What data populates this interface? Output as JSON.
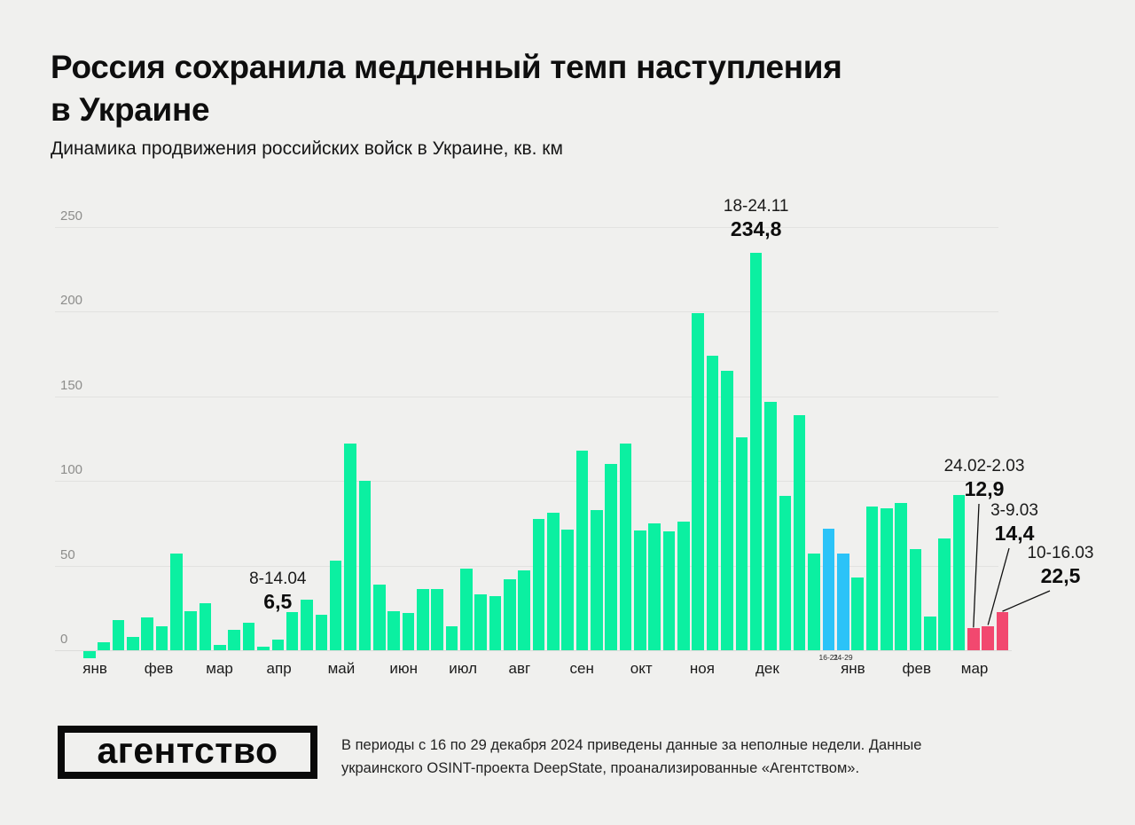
{
  "title": {
    "line1": "Россия сохранила медленный темп наступления",
    "line2": "в Украине"
  },
  "subtitle": "Динамика продвижения российских войск в Украине, кв. км",
  "footer": {
    "logo_text": "агентство",
    "note": "В периоды с 16 по 29 декабря 2024 приведены данные за неполные недели. Данные украинского OSINT-проекта DeepState, проанализированные «Агентством»."
  },
  "colors": {
    "background": "#f0f0ee",
    "bar_green": "#0bf0a1",
    "bar_blue": "#2bc3f8",
    "bar_pink": "#f2486f",
    "gridline": "#e2e2e0",
    "axis_text": "#8d8d8b",
    "ink": "#111111"
  },
  "chart_data": {
    "type": "bar",
    "title": "Россия сохранила медленный темп наступления в Украине",
    "ylabel": "кв. км",
    "ylim": [
      0,
      250
    ],
    "yticks": [
      0,
      50,
      100,
      150,
      200,
      250
    ],
    "grid": true,
    "x_unit": "недели (янв 2024 — мар 2025)",
    "values": [
      -4,
      5,
      18,
      8,
      19.5,
      14,
      57,
      23,
      28,
      3,
      12,
      16.5,
      2,
      6.5,
      22.5,
      30,
      21,
      53,
      122,
      100,
      39,
      23,
      22,
      36,
      36,
      14,
      48,
      33,
      32,
      42,
      47,
      77.5,
      81.5,
      71.5,
      118,
      83,
      110,
      122,
      71,
      75,
      70,
      76,
      199,
      174,
      165,
      126,
      234.8,
      147,
      91,
      139,
      57,
      72,
      57,
      43,
      85,
      84,
      87,
      60,
      20,
      66,
      92,
      12.9,
      14.4,
      22.5
    ],
    "blue_indices": [
      51,
      52
    ],
    "pink_indices": [
      61,
      62,
      63
    ],
    "months": [
      {
        "label": "янв",
        "idx": 0.3
      },
      {
        "label": "фев",
        "idx": 4.7
      },
      {
        "label": "мар",
        "idx": 8.9
      },
      {
        "label": "апр",
        "idx": 13.0
      },
      {
        "label": "май",
        "idx": 17.3
      },
      {
        "label": "июн",
        "idx": 21.6
      },
      {
        "label": "июл",
        "idx": 25.7
      },
      {
        "label": "авг",
        "idx": 29.6
      },
      {
        "label": "сен",
        "idx": 33.9
      },
      {
        "label": "окт",
        "idx": 38.0
      },
      {
        "label": "ноя",
        "idx": 42.2
      },
      {
        "label": "дек",
        "idx": 46.7
      },
      {
        "label": "янв",
        "idx": 52.6
      },
      {
        "label": "фев",
        "idx": 57.0
      },
      {
        "label": "мар",
        "idx": 61.0
      }
    ],
    "bar_sublabels": [
      {
        "index": 51,
        "text": "16-21"
      },
      {
        "index": 52,
        "text": "24-29"
      }
    ],
    "annotations": [
      {
        "kind": "above",
        "bar": 13,
        "date": "8-14.04",
        "value": "6,5",
        "gap": 30
      },
      {
        "kind": "above",
        "bar": 46,
        "date": "18-24.11",
        "value": "234,8",
        "gap": 14
      },
      {
        "kind": "callout",
        "bar": 61,
        "date": "24.02-2.03",
        "value": "12,9",
        "cx": 1110,
        "top": 514,
        "line_dx": -6
      },
      {
        "kind": "callout",
        "bar": 62,
        "date": "3-9.03",
        "value": "14,4",
        "cx": 1144,
        "top": 564,
        "line_dx": -6
      },
      {
        "kind": "callout",
        "bar": 63,
        "date": "10-16.03",
        "value": "22,5",
        "cx": 1196,
        "top": 612,
        "line_dx": -12
      }
    ]
  }
}
